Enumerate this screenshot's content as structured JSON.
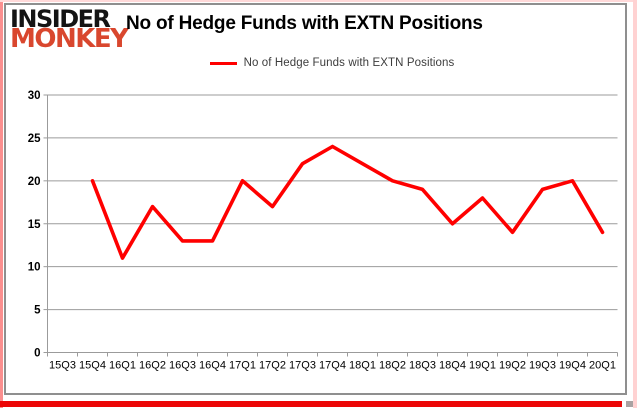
{
  "logo": {
    "line1": "INSIDER",
    "line2": "MONKEY"
  },
  "header": {
    "title": "No of Hedge Funds with EXTN Positions"
  },
  "legend": {
    "label": "No of Hedge Funds with EXTN Positions",
    "swatch_color": "#ff0000"
  },
  "chart_data": {
    "type": "line",
    "title": "No of Hedge Funds with EXTN Positions",
    "categories": [
      "15Q3",
      "15Q4",
      "16Q1",
      "16Q2",
      "16Q3",
      "16Q4",
      "17Q1",
      "17Q2",
      "17Q3",
      "17Q4",
      "18Q1",
      "18Q2",
      "18Q3",
      "18Q4",
      "19Q1",
      "19Q2",
      "19Q3",
      "19Q4",
      "20Q1"
    ],
    "series": [
      {
        "name": "No of Hedge Funds with EXTN Positions",
        "color": "#ff0000",
        "values": [
          null,
          20,
          11,
          17,
          13,
          13,
          20,
          17,
          22,
          24,
          22,
          20,
          19,
          15,
          18,
          14,
          19,
          20,
          14
        ]
      }
    ],
    "xlabel": "",
    "ylabel": "",
    "ylim": [
      0,
      30
    ],
    "yticks": [
      0,
      5,
      10,
      15,
      20,
      25,
      30
    ],
    "grid": "horizontal",
    "legend_position": "top-center"
  },
  "colors": {
    "line": "#ff0000",
    "grid": "#9b9b9b",
    "axis_text": "#000000",
    "logo_black": "#141414",
    "logo_red": "#d9472e",
    "frame_bottom": "#ec0606",
    "frame_left": "#fb8f8f",
    "card_border": "#8f8f8f"
  }
}
